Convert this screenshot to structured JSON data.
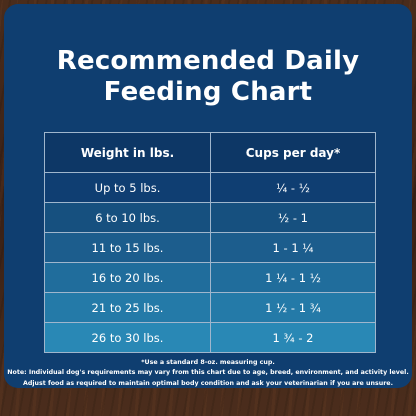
{
  "card": {
    "title_line1": "Recommended Daily",
    "title_line2": "Feeding Chart"
  },
  "table": {
    "headers": [
      "Weight in lbs.",
      "Cups per day*"
    ],
    "rows": [
      {
        "weight": "Up to 5 lbs.",
        "cups": "¼  -  ½",
        "color": "#0f3e72"
      },
      {
        "weight": "6 to 10 lbs.",
        "cups": "½  - 1",
        "color": "#16507f"
      },
      {
        "weight": "11 to 15 lbs.",
        "cups": "1  - 1 ¼",
        "color": "#1c5d8d"
      },
      {
        "weight": "16 to 20 lbs.",
        "cups": "1 ¼  - 1 ½",
        "color": "#206d9c"
      },
      {
        "weight": "21 to 25 lbs.",
        "cups": "1 ½ - 1 ¾",
        "color": "#247aa8"
      },
      {
        "weight": "26 to 30 lbs.",
        "cups": "1 ¾ - 2",
        "color": "#2988b5"
      }
    ]
  },
  "notes": {
    "measuring": "*Use a standard 8-oz. measuring cup.",
    "disclaimer": "Note: Individual dog's requirements may vary from this chart due to age, breed, environment, and activity level. Adjust food as required to maintain optimal body condition and ask your veterinarian if you are unsure."
  }
}
